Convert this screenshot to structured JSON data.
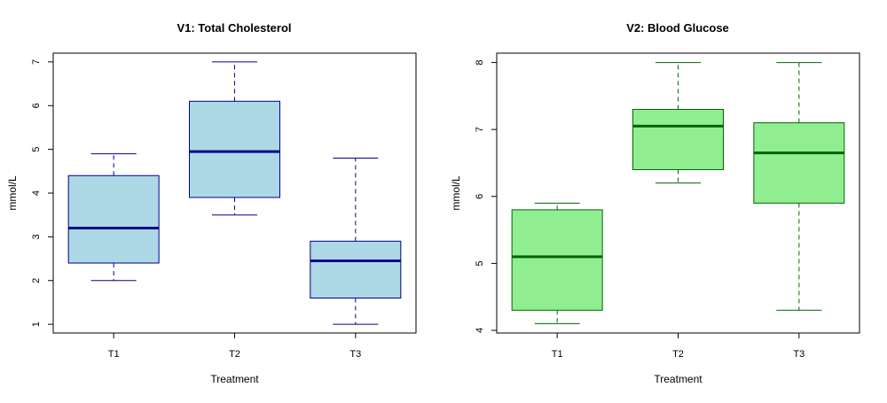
{
  "chart_data": [
    {
      "type": "boxplot",
      "title": "V1: Total Cholesterol",
      "xlabel": "Treatment",
      "ylabel": "mmol/L",
      "categories": [
        "T1",
        "T2",
        "T3"
      ],
      "ylim": [
        0.8,
        7.2
      ],
      "yticks": [
        1,
        2,
        3,
        4,
        5,
        6,
        7
      ],
      "box_fill": "#add8e6",
      "line_color": "#00008b",
      "boxes": [
        {
          "category": "T1",
          "min": 2.0,
          "q1": 2.4,
          "median": 3.2,
          "q3": 4.4,
          "max": 4.9
        },
        {
          "category": "T2",
          "min": 3.5,
          "q1": 3.9,
          "median": 4.95,
          "q3": 6.1,
          "max": 7.0
        },
        {
          "category": "T3",
          "min": 1.0,
          "q1": 1.6,
          "median": 2.45,
          "q3": 2.9,
          "max": 4.8
        }
      ]
    },
    {
      "type": "boxplot",
      "title": "V2: Blood Glucose",
      "xlabel": "Treatment",
      "ylabel": "mmol/L",
      "categories": [
        "T1",
        "T2",
        "T3"
      ],
      "ylim": [
        3.96,
        8.14
      ],
      "yticks": [
        4,
        5,
        6,
        7,
        8
      ],
      "box_fill": "#90ee90",
      "line_color": "#006400",
      "boxes": [
        {
          "category": "T1",
          "min": 4.1,
          "q1": 4.3,
          "median": 5.1,
          "q3": 5.8,
          "max": 5.9
        },
        {
          "category": "T2",
          "min": 6.2,
          "q1": 6.4,
          "median": 7.05,
          "q3": 7.3,
          "max": 8.0
        },
        {
          "category": "T3",
          "min": 4.3,
          "q1": 5.9,
          "median": 6.65,
          "q3": 7.1,
          "max": 8.0
        }
      ]
    }
  ]
}
